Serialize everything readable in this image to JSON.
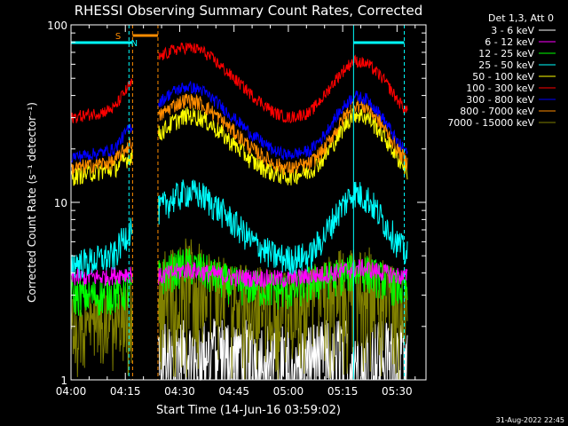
{
  "chart_data": {
    "type": "line",
    "title": "RHESSI Observing Summary Count Rates, Corrected",
    "xlabel": "Start Time (14-Jun-16 03:59:02)",
    "ylabel": "Corrected Count Rate (s⁻¹ detector⁻¹)",
    "y_scale": "log",
    "ylim": [
      1,
      100
    ],
    "xlim_minutes_after_0400": [
      0,
      98
    ],
    "x_ticks": [
      {
        "label": "04:00",
        "min": 0
      },
      {
        "label": "04:15",
        "min": 15
      },
      {
        "label": "04:30",
        "min": 30
      },
      {
        "label": "04:45",
        "min": 45
      },
      {
        "label": "05:00",
        "min": 60
      },
      {
        "label": "05:15",
        "min": 75
      },
      {
        "label": "05:30",
        "min": 90
      }
    ],
    "y_ticks": [
      {
        "label": "1",
        "value": 1
      },
      {
        "label": "10",
        "value": 10
      },
      {
        "label": "100",
        "value": 100
      }
    ],
    "legend_title": "Det 1,3, Att 0",
    "legend_placement": "right",
    "gap_minutes": [
      [
        17.0,
        24.0
      ]
    ],
    "series": [
      {
        "name": "3 - 6 keV",
        "color": "#ffffff",
        "x": [
          24,
          28,
          32,
          36,
          40,
          50,
          60,
          70,
          74,
          80,
          86,
          92
        ],
        "values": [
          1.5,
          1.5,
          1.5,
          1.5,
          1.6,
          1.5,
          1.4,
          1.5,
          1.6,
          1.5,
          1.5,
          1.5
        ]
      },
      {
        "name": "6 - 12 keV",
        "color": "#ff00ff",
        "x": [
          0,
          8,
          16,
          24,
          32,
          44,
          60,
          72,
          80,
          92
        ],
        "values": [
          3.8,
          3.8,
          4.0,
          3.8,
          4.2,
          3.8,
          3.7,
          4.0,
          4.3,
          3.8
        ]
      },
      {
        "name": "12 - 25 keV",
        "color": "#00ff00",
        "x": [
          0,
          8,
          16,
          24,
          32,
          44,
          60,
          72,
          80,
          92
        ],
        "values": [
          3.0,
          3.0,
          3.2,
          3.8,
          4.5,
          3.5,
          3.2,
          3.8,
          4.2,
          3.2
        ]
      },
      {
        "name": "25 - 50 keV",
        "color": "#00ffff",
        "x": [
          0,
          4,
          8,
          12,
          16,
          24,
          28,
          32,
          36,
          40,
          44,
          50,
          56,
          60,
          66,
          70,
          74,
          78,
          82,
          86,
          90,
          93
        ],
        "values": [
          4.6,
          4.6,
          4.8,
          5.0,
          7.0,
          9.0,
          10.5,
          11.5,
          11.0,
          9.5,
          8.0,
          6.0,
          5.0,
          4.8,
          5.0,
          6.5,
          9.0,
          11.5,
          10.5,
          8.0,
          6.0,
          5.0
        ]
      },
      {
        "name": "50 - 100 keV",
        "color": "#ffff00",
        "x": [
          0,
          4,
          8,
          12,
          16,
          24,
          28,
          32,
          36,
          40,
          44,
          50,
          56,
          60,
          66,
          70,
          74,
          78,
          82,
          86,
          90,
          93
        ],
        "values": [
          14,
          14.5,
          15,
          15.5,
          18,
          24,
          28,
          31,
          30,
          26,
          22,
          17,
          14.5,
          14,
          15,
          18,
          24,
          32,
          30,
          24,
          18,
          15
        ]
      },
      {
        "name": "100 - 300 keV",
        "color": "#ff0000",
        "x": [
          0,
          4,
          8,
          12,
          16,
          24,
          28,
          32,
          36,
          40,
          44,
          50,
          56,
          60,
          66,
          70,
          74,
          78,
          82,
          86,
          90,
          93
        ],
        "values": [
          30,
          31,
          32,
          34,
          45,
          65,
          72,
          75,
          72,
          62,
          52,
          40,
          32,
          30,
          32,
          40,
          52,
          63,
          60,
          50,
          38,
          32
        ]
      },
      {
        "name": "300 - 800 keV",
        "color": "#0000ff",
        "x": [
          0,
          4,
          8,
          12,
          16,
          24,
          28,
          32,
          36,
          40,
          44,
          50,
          56,
          60,
          66,
          70,
          74,
          78,
          82,
          86,
          90,
          93
        ],
        "values": [
          18,
          18.5,
          19,
          20,
          26,
          36,
          42,
          45,
          43,
          37,
          31,
          24,
          19.5,
          18.5,
          19.5,
          24,
          32,
          40,
          38,
          30,
          22,
          19
        ]
      },
      {
        "name": "800 - 7000 keV",
        "color": "#ff8c00",
        "x": [
          0,
          4,
          8,
          12,
          16,
          24,
          28,
          32,
          36,
          40,
          44,
          50,
          56,
          60,
          66,
          70,
          74,
          78,
          82,
          86,
          90,
          93
        ],
        "values": [
          15.5,
          16,
          16.5,
          17,
          21,
          30,
          35,
          38,
          36,
          31,
          26,
          20,
          16.5,
          15.5,
          16.5,
          20,
          27,
          36,
          34,
          27,
          20,
          16.5
        ]
      },
      {
        "name": "7000 - 15000 keV",
        "color": "#808000",
        "x": [
          0,
          8,
          16,
          24,
          32,
          44,
          60,
          72,
          80,
          92
        ],
        "values": [
          2.0,
          2.2,
          2.5,
          3.5,
          4.4,
          3.2,
          2.8,
          3.5,
          4.2,
          2.6
        ]
      }
    ],
    "markers": [
      {
        "label": "S",
        "color": "#ff8c00"
      },
      {
        "label": "N",
        "color": "#00ffff"
      }
    ]
  },
  "footer_timestamp": "31-Aug-2022 22:45"
}
